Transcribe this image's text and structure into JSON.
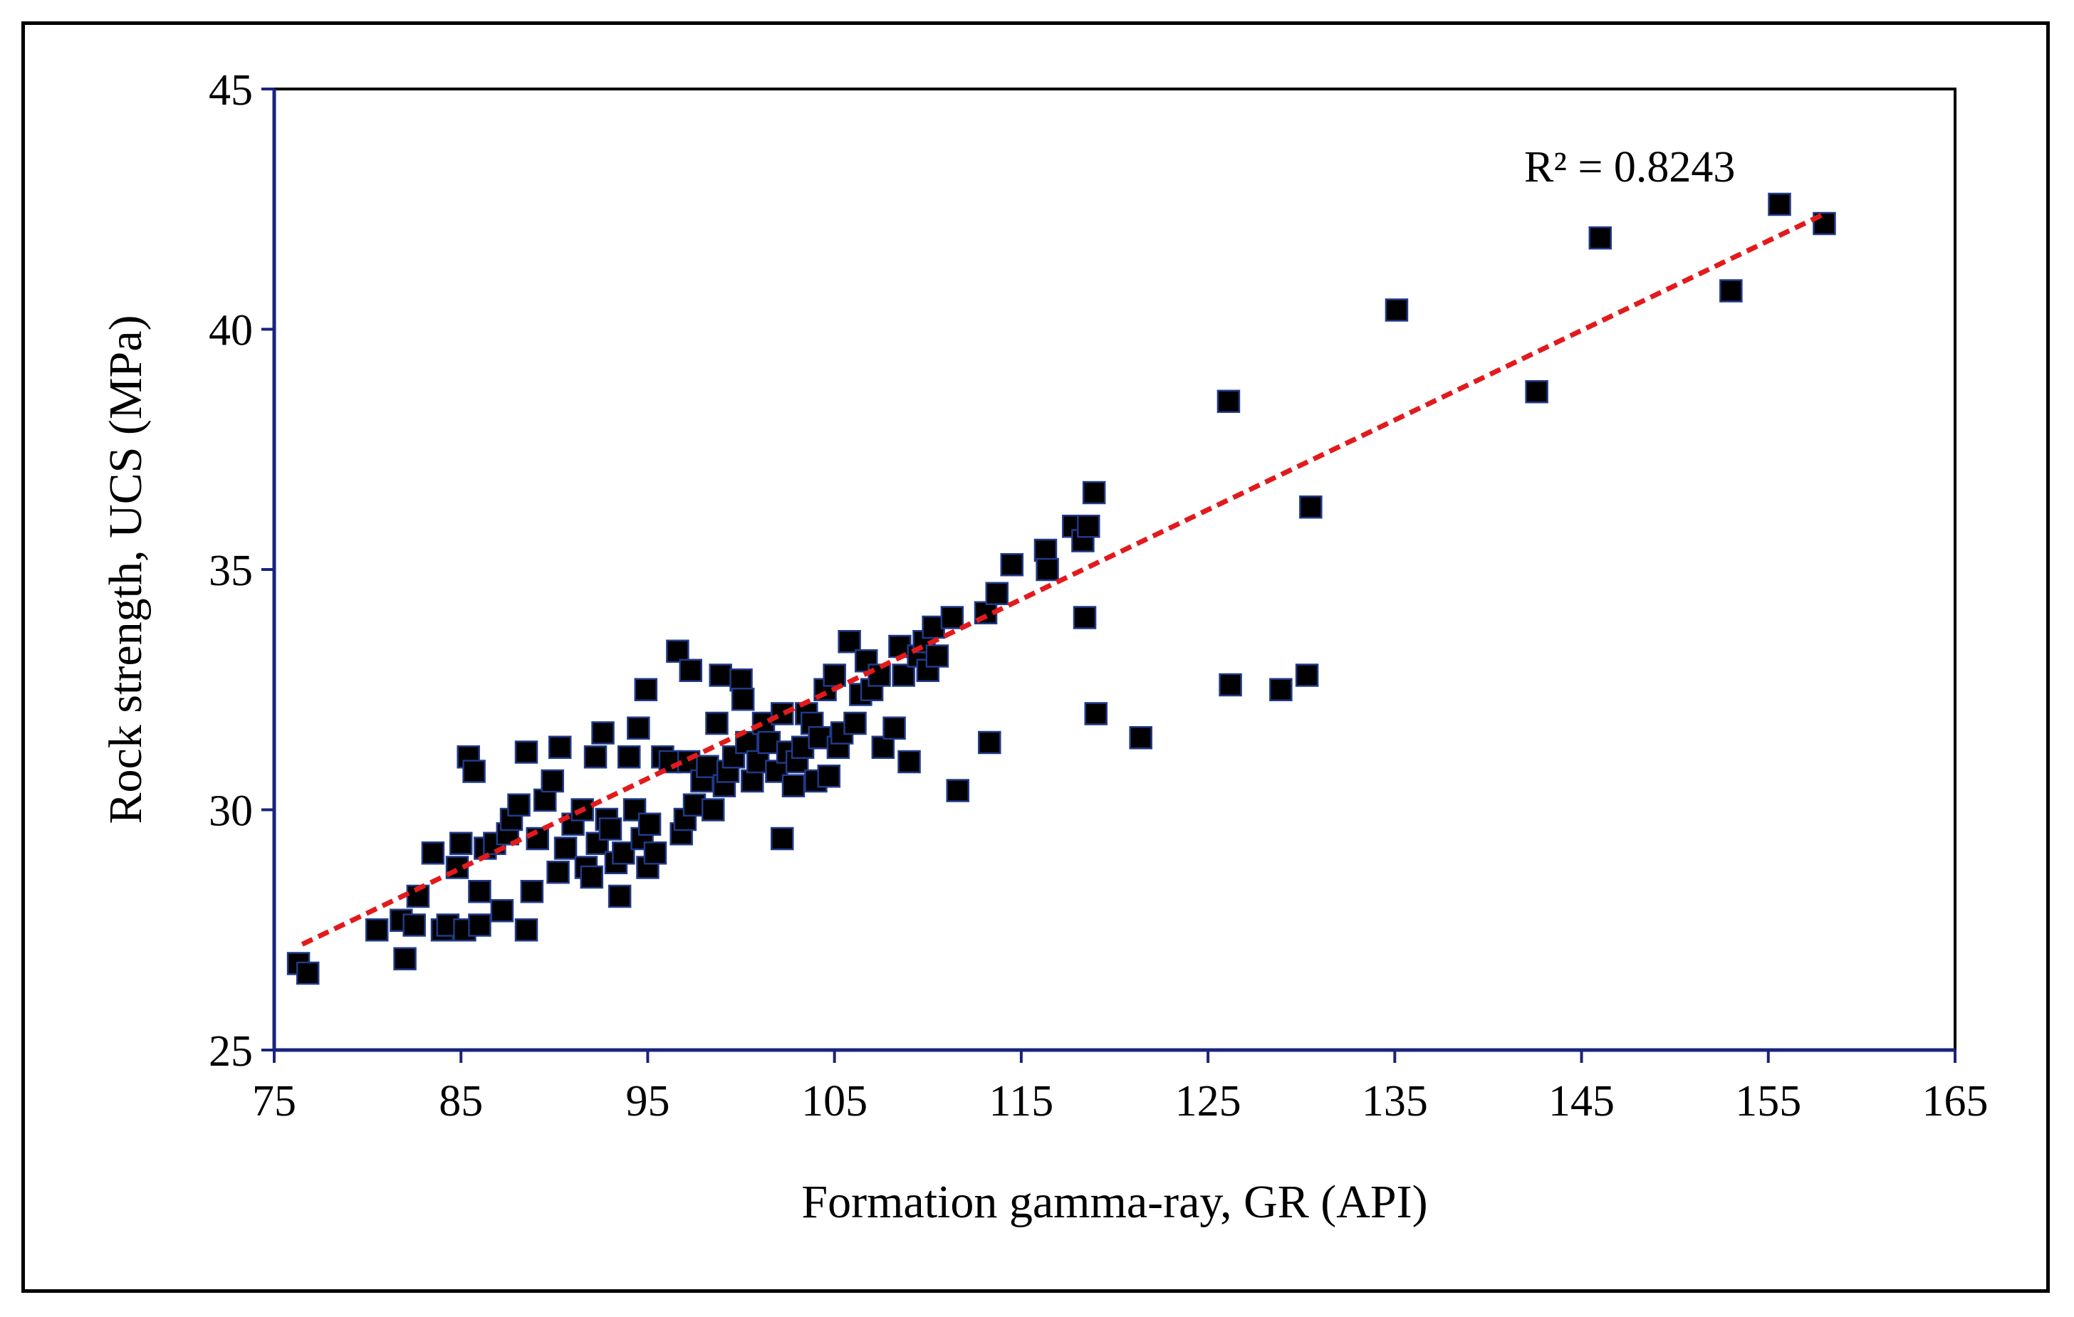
{
  "chart_data": {
    "type": "scatter",
    "xlabel": "Formation gamma-ray, GR (API)",
    "ylabel": "Rock strength, UCS (MPa)",
    "xlim": [
      75,
      165
    ],
    "ylim": [
      25,
      45
    ],
    "xticks": [
      75,
      85,
      95,
      105,
      115,
      125,
      135,
      145,
      155,
      165
    ],
    "yticks": [
      25,
      30,
      35,
      40,
      45
    ],
    "grid": false,
    "legend": "none",
    "marker": "square",
    "marker_color": "#000000",
    "marker_edge_color": "#1f3a8a",
    "axis_color": "#1a237e",
    "trendline": {
      "style": "dashed",
      "color": "#e31a1c",
      "x": [
        76.5,
        158
      ],
      "y": [
        27.2,
        42.4
      ],
      "annotation": "R² = 0.8243"
    },
    "points": [
      [
        76.3,
        26.8
      ],
      [
        76.8,
        26.6
      ],
      [
        80.5,
        27.5
      ],
      [
        81.8,
        27.7
      ],
      [
        82,
        26.9
      ],
      [
        82.5,
        27.6
      ],
      [
        82.7,
        28.2
      ],
      [
        83.5,
        29.1
      ],
      [
        84,
        27.5
      ],
      [
        84.3,
        27.6
      ],
      [
        84.8,
        28.8
      ],
      [
        85,
        29.3
      ],
      [
        85.2,
        27.5
      ],
      [
        85.4,
        31.1
      ],
      [
        85.7,
        30.8
      ],
      [
        86,
        27.6
      ],
      [
        86,
        28.3
      ],
      [
        86.3,
        29.2
      ],
      [
        86.8,
        29.3
      ],
      [
        87.2,
        27.9
      ],
      [
        87.5,
        29.5
      ],
      [
        87.7,
        29.8
      ],
      [
        88.1,
        30.1
      ],
      [
        88.5,
        27.5
      ],
      [
        88.5,
        31.2
      ],
      [
        88.8,
        28.3
      ],
      [
        89.1,
        29.4
      ],
      [
        89.5,
        30.2
      ],
      [
        89.9,
        30.6
      ],
      [
        90.2,
        28.7
      ],
      [
        90.3,
        31.3
      ],
      [
        90.6,
        29.2
      ],
      [
        91,
        29.7
      ],
      [
        91.5,
        30
      ],
      [
        91.7,
        28.8
      ],
      [
        92,
        28.6
      ],
      [
        92.2,
        31.1
      ],
      [
        92.3,
        29.3
      ],
      [
        92.6,
        31.6
      ],
      [
        92.8,
        29.8
      ],
      [
        93,
        29.6
      ],
      [
        93.3,
        28.9
      ],
      [
        93.5,
        28.2
      ],
      [
        93.7,
        29.1
      ],
      [
        94,
        31.1
      ],
      [
        94.3,
        30
      ],
      [
        94.5,
        31.7
      ],
      [
        94.7,
        29.4
      ],
      [
        94.9,
        32.5
      ],
      [
        95,
        28.8
      ],
      [
        95.1,
        29.7
      ],
      [
        95.4,
        29.1
      ],
      [
        95.8,
        31.1
      ],
      [
        96.2,
        31
      ],
      [
        96.6,
        33.3
      ],
      [
        96.8,
        29.5
      ],
      [
        97,
        29.8
      ],
      [
        97.2,
        31
      ],
      [
        97.3,
        32.9
      ],
      [
        97.5,
        30.1
      ],
      [
        97.9,
        30.6
      ],
      [
        98.2,
        30.9
      ],
      [
        98.5,
        30
      ],
      [
        98.7,
        31.8
      ],
      [
        98.9,
        32.8
      ],
      [
        99.1,
        30.5
      ],
      [
        99.3,
        30.8
      ],
      [
        99.6,
        31.1
      ],
      [
        100,
        32.7
      ],
      [
        100.1,
        32.3
      ],
      [
        100.3,
        31.4
      ],
      [
        100.6,
        30.6
      ],
      [
        100.9,
        31
      ],
      [
        101.2,
        31.8
      ],
      [
        101.5,
        31.4
      ],
      [
        101.9,
        30.8
      ],
      [
        102.2,
        32
      ],
      [
        102.2,
        29.4
      ],
      [
        102.5,
        31.2
      ],
      [
        102.8,
        30.5
      ],
      [
        103,
        31
      ],
      [
        103.3,
        31.3
      ],
      [
        103.5,
        32
      ],
      [
        103.8,
        31.8
      ],
      [
        104,
        30.6
      ],
      [
        104.2,
        31.5
      ],
      [
        104.5,
        32.5
      ],
      [
        104.7,
        30.7
      ],
      [
        105,
        32.8
      ],
      [
        105.2,
        31.3
      ],
      [
        105.4,
        31.6
      ],
      [
        105.8,
        33.5
      ],
      [
        106.1,
        31.8
      ],
      [
        106.4,
        32.4
      ],
      [
        106.7,
        33.1
      ],
      [
        107,
        32.5
      ],
      [
        107.4,
        32.8
      ],
      [
        107.6,
        31.3
      ],
      [
        108.2,
        31.7
      ],
      [
        108.5,
        33.4
      ],
      [
        108.7,
        32.8
      ],
      [
        109,
        31
      ],
      [
        109.5,
        33.2
      ],
      [
        109.8,
        33.5
      ],
      [
        110,
        32.9
      ],
      [
        110.3,
        33.8
      ],
      [
        110.5,
        33.2
      ],
      [
        111.3,
        34
      ],
      [
        111.6,
        30.4
      ],
      [
        113.1,
        34.1
      ],
      [
        113.3,
        31.4
      ],
      [
        113.7,
        34.5
      ],
      [
        114.5,
        35.1
      ],
      [
        116.3,
        35.4
      ],
      [
        116.4,
        35
      ],
      [
        117.8,
        35.9
      ],
      [
        118.3,
        35.6
      ],
      [
        118.4,
        34
      ],
      [
        118.6,
        35.9
      ],
      [
        118.9,
        36.6
      ],
      [
        119,
        32
      ],
      [
        121.4,
        31.5
      ],
      [
        126.1,
        38.5
      ],
      [
        126.2,
        32.6
      ],
      [
        128.9,
        32.5
      ],
      [
        130.3,
        32.8
      ],
      [
        130.5,
        36.3
      ],
      [
        135.1,
        40.4
      ],
      [
        142.6,
        38.7
      ],
      [
        146,
        41.9
      ],
      [
        153,
        40.8
      ],
      [
        155.6,
        42.6
      ],
      [
        158,
        42.2
      ]
    ]
  }
}
